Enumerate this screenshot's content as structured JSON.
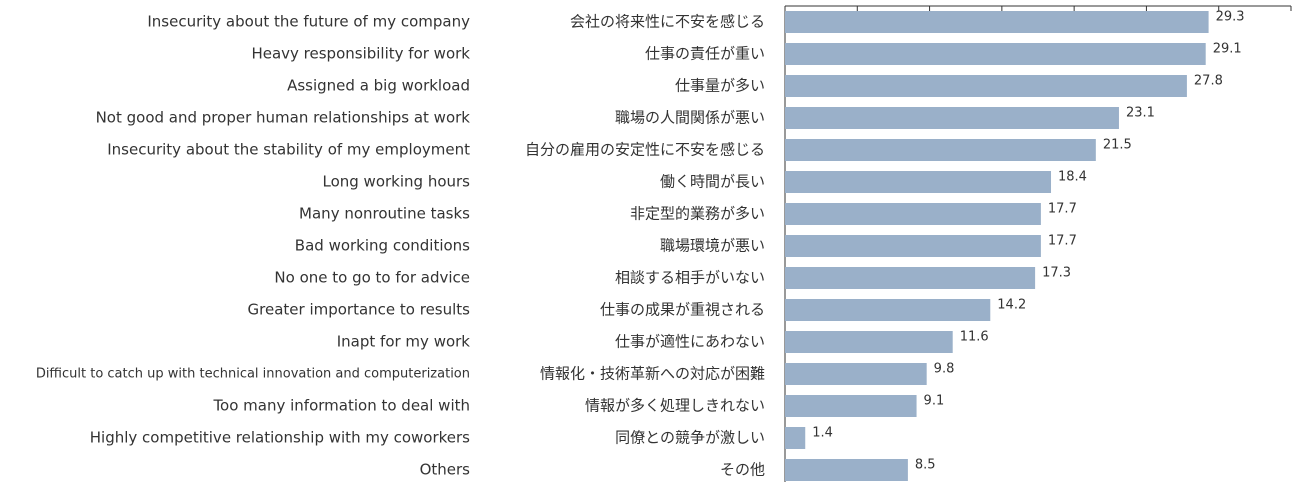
{
  "chart_data": {
    "type": "barh",
    "categories": [
      "Insecurity about the future of my company",
      "Heavy responsibility for work",
      "Assigned a big workload",
      "Not good and proper human relationships at work",
      "Insecurity about the stability of my employment",
      "Long working hours",
      "Many nonroutine tasks",
      "Bad working conditions",
      "No one to go to for advice",
      "Greater importance to results",
      "Inapt for my work",
      "Difficult to catch up with technical innovation and computerization",
      "Too many information to deal with",
      "Highly competitive relationship with my coworkers",
      "Others"
    ],
    "categories_ja": [
      "会社の将来性に不安を感じる",
      "仕事の責任が重い",
      "仕事量が多い",
      "職場の人間関係が悪い",
      "自分の雇用の安定性に不安を感じる",
      "働く時間が長い",
      "非定型的業務が多い",
      "職場環境が悪い",
      "相談する相手がいない",
      "仕事の成果が重視される",
      "仕事が適性にあわない",
      "情報化・技術革新への対応が困難",
      "情報が多く処理しきれない",
      "同僚との競争が激しい",
      "その他"
    ],
    "values": [
      29.3,
      29.1,
      27.8,
      23.1,
      21.5,
      18.4,
      17.7,
      17.7,
      17.3,
      14.2,
      11.6,
      9.8,
      9.1,
      1.4,
      8.5
    ],
    "color": "#9ab0c9",
    "xlim": [
      0,
      35
    ],
    "xticks": [
      0,
      5,
      10,
      15,
      20,
      25,
      30,
      35
    ]
  }
}
